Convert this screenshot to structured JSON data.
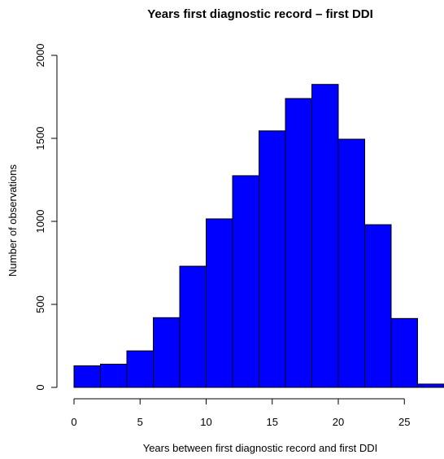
{
  "chart_data": {
    "type": "bar",
    "title": "Years first diagnostic record – first DDI",
    "xlabel": "Years between first diagnostic record and first DDI",
    "ylabel": "Number of observations",
    "bin_edges": [
      0,
      2,
      4,
      6,
      8,
      10,
      12,
      14,
      16,
      18,
      20,
      22,
      24,
      26,
      28
    ],
    "values": [
      130,
      140,
      220,
      420,
      730,
      1015,
      1275,
      1545,
      1740,
      1825,
      1495,
      980,
      415,
      20
    ],
    "xlim": [
      0,
      28
    ],
    "ylim": [
      0,
      2000
    ],
    "x_ticks": [
      0,
      5,
      10,
      15,
      20,
      25
    ],
    "y_ticks": [
      0,
      500,
      1000,
      1500,
      2000
    ],
    "grid": false,
    "colors": {
      "bar_fill": "#0000ff",
      "bar_stroke": "#000000"
    }
  }
}
